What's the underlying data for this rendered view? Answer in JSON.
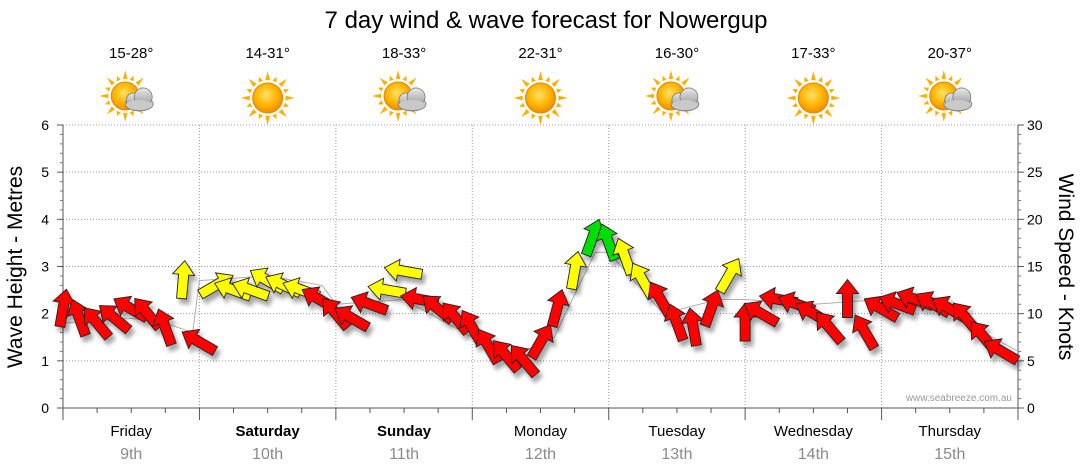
{
  "chart_data": {
    "type": "line",
    "title": "7 day wind & wave forecast for Nowergup",
    "ylabel_left": "Wave Height - Metres",
    "ylabel_right": "Wind Speed - Knots",
    "ylim_left": [
      0,
      6
    ],
    "ylim_right": [
      0,
      30
    ],
    "yticks_left": [
      "0",
      "1",
      "2",
      "3",
      "4",
      "5",
      "6"
    ],
    "yticks_right": [
      "0",
      "5",
      "10",
      "15",
      "20",
      "25",
      "30"
    ],
    "days": [
      {
        "day": "Friday",
        "date": "9th",
        "bold": false,
        "temp": "15-28°",
        "weather_icon": "sun-cloud-icon"
      },
      {
        "day": "Saturday",
        "date": "10th",
        "bold": true,
        "temp": "14-31°",
        "weather_icon": "sun-icon"
      },
      {
        "day": "Sunday",
        "date": "11th",
        "bold": true,
        "temp": "18-33°",
        "weather_icon": "sun-cloud-icon"
      },
      {
        "day": "Monday",
        "date": "12th",
        "bold": false,
        "temp": "22-31°",
        "weather_icon": "sun-icon"
      },
      {
        "day": "Tuesday",
        "date": "13th",
        "bold": false,
        "temp": "16-30°",
        "weather_icon": "sun-cloud-icon"
      },
      {
        "day": "Wednesday",
        "date": "14th",
        "bold": false,
        "temp": "17-33°",
        "weather_icon": "sun-icon"
      },
      {
        "day": "Thursday",
        "date": "15th",
        "bold": false,
        "temp": "20-37°",
        "weather_icon": "sun-cloud-icon"
      }
    ],
    "series": [
      {
        "name": "Wind Speed - Knots",
        "note": "one wind arrow per 3 hours (56 points over 7 days); t in days from start of Friday, speed in knots, dir = compass bearing the arrow points toward",
        "points": [
          {
            "t": 0.0,
            "speed": 10.5,
            "dir": 10
          },
          {
            "t": 0.12,
            "speed": 9.5,
            "dir": 340
          },
          {
            "t": 0.25,
            "speed": 9.0,
            "dir": 320
          },
          {
            "t": 0.38,
            "speed": 9.5,
            "dir": 310
          },
          {
            "t": 0.5,
            "speed": 10.5,
            "dir": 300
          },
          {
            "t": 0.62,
            "speed": 10.0,
            "dir": 320
          },
          {
            "t": 0.75,
            "speed": 8.5,
            "dir": 340
          },
          {
            "t": 0.88,
            "speed": 13.5,
            "dir": 5
          },
          {
            "t": 1.0,
            "speed": 7.0,
            "dir": 300
          },
          {
            "t": 1.12,
            "speed": 13.0,
            "dir": 60
          },
          {
            "t": 1.25,
            "speed": 12.5,
            "dir": 290
          },
          {
            "t": 1.38,
            "speed": 12.5,
            "dir": 290
          },
          {
            "t": 1.5,
            "speed": 13.5,
            "dir": 300
          },
          {
            "t": 1.62,
            "speed": 13.0,
            "dir": 295
          },
          {
            "t": 1.75,
            "speed": 12.5,
            "dir": 290
          },
          {
            "t": 1.88,
            "speed": 11.5,
            "dir": 300
          },
          {
            "t": 2.0,
            "speed": 10.0,
            "dir": 320
          },
          {
            "t": 2.12,
            "speed": 9.5,
            "dir": 300
          },
          {
            "t": 2.25,
            "speed": 11.0,
            "dir": 290
          },
          {
            "t": 2.38,
            "speed": 12.5,
            "dir": 280
          },
          {
            "t": 2.5,
            "speed": 14.5,
            "dir": 280
          },
          {
            "t": 2.62,
            "speed": 11.5,
            "dir": 280
          },
          {
            "t": 2.75,
            "speed": 10.5,
            "dir": 310
          },
          {
            "t": 2.88,
            "speed": 9.5,
            "dir": 320
          },
          {
            "t": 3.0,
            "speed": 8.5,
            "dir": 330
          },
          {
            "t": 3.12,
            "speed": 6.5,
            "dir": 330
          },
          {
            "t": 3.25,
            "speed": 5.5,
            "dir": 320
          },
          {
            "t": 3.38,
            "speed": 5.0,
            "dir": 320
          },
          {
            "t": 3.5,
            "speed": 7.0,
            "dir": 30
          },
          {
            "t": 3.62,
            "speed": 10.5,
            "dir": 15
          },
          {
            "t": 3.75,
            "speed": 14.5,
            "dir": 10
          },
          {
            "t": 3.88,
            "speed": 18.0,
            "dir": 20
          },
          {
            "t": 4.0,
            "speed": 17.5,
            "dir": 340
          },
          {
            "t": 4.12,
            "speed": 16.0,
            "dir": 340
          },
          {
            "t": 4.25,
            "speed": 13.5,
            "dir": 330
          },
          {
            "t": 4.38,
            "speed": 11.5,
            "dir": 330
          },
          {
            "t": 4.5,
            "speed": 9.0,
            "dir": 340
          },
          {
            "t": 4.62,
            "speed": 8.5,
            "dir": 350
          },
          {
            "t": 4.75,
            "speed": 10.5,
            "dir": 20
          },
          {
            "t": 4.88,
            "speed": 14.0,
            "dir": 30
          },
          {
            "t": 5.0,
            "speed": 9.0,
            "dir": 0
          },
          {
            "t": 5.12,
            "speed": 10.0,
            "dir": 300
          },
          {
            "t": 5.25,
            "speed": 11.5,
            "dir": 280
          },
          {
            "t": 5.38,
            "speed": 11.0,
            "dir": 290
          },
          {
            "t": 5.5,
            "speed": 10.0,
            "dir": 300
          },
          {
            "t": 5.62,
            "speed": 8.5,
            "dir": 320
          },
          {
            "t": 5.75,
            "speed": 11.5,
            "dir": 0
          },
          {
            "t": 5.88,
            "speed": 8.0,
            "dir": 330
          },
          {
            "t": 6.0,
            "speed": 10.5,
            "dir": 300
          },
          {
            "t": 6.12,
            "speed": 11.0,
            "dir": 290
          },
          {
            "t": 6.25,
            "speed": 11.5,
            "dir": 290
          },
          {
            "t": 6.38,
            "speed": 11.0,
            "dir": 300
          },
          {
            "t": 6.5,
            "speed": 10.5,
            "dir": 300
          },
          {
            "t": 6.62,
            "speed": 9.5,
            "dir": 320
          },
          {
            "t": 6.75,
            "speed": 7.5,
            "dir": 320
          },
          {
            "t": 6.88,
            "speed": 6.0,
            "dir": 300
          }
        ]
      },
      {
        "name": "Wave Height - Metres",
        "points": [
          {
            "t": 0.0,
            "height": 1.8
          },
          {
            "t": 0.5,
            "height": 1.9
          },
          {
            "t": 0.75,
            "height": 1.8
          },
          {
            "t": 0.95,
            "height": 1.6
          },
          {
            "t": 1.0,
            "height": 2.7
          },
          {
            "t": 1.5,
            "height": 2.8
          },
          {
            "t": 1.9,
            "height": 2.6
          },
          {
            "t": 2.0,
            "height": 2.2
          },
          {
            "t": 2.5,
            "height": 2.3
          },
          {
            "t": 3.0,
            "height": 1.5
          },
          {
            "t": 3.3,
            "height": 1.1
          },
          {
            "t": 3.6,
            "height": 1.5
          },
          {
            "t": 3.9,
            "height": 3.3
          },
          {
            "t": 4.0,
            "height": 3.3
          },
          {
            "t": 4.4,
            "height": 2.0
          },
          {
            "t": 4.8,
            "height": 2.3
          },
          {
            "t": 5.0,
            "height": 2.3
          },
          {
            "t": 5.5,
            "height": 2.2
          },
          {
            "t": 6.0,
            "height": 2.3
          },
          {
            "t": 6.5,
            "height": 2.0
          },
          {
            "t": 7.0,
            "height": 1.2
          }
        ]
      }
    ],
    "wind_color_scale": [
      {
        "max_knots": 12,
        "color": "#ff0000"
      },
      {
        "max_knots": 17,
        "color": "#ffff00"
      },
      {
        "max_knots": 22,
        "color": "#00dd00"
      }
    ],
    "grid": true,
    "legend": "none"
  },
  "watermark": "www.seabreeze.com.au"
}
